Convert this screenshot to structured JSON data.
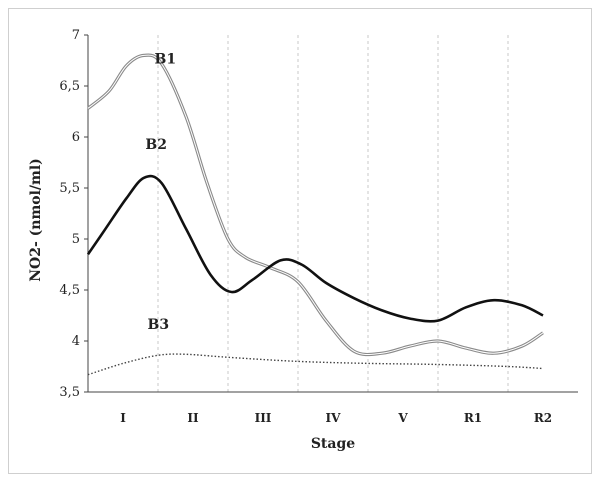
{
  "chart_data": {
    "type": "line",
    "xlabel": "Stage",
    "ylabel": "NO2- (nmol/ml)",
    "categories": [
      "I",
      "II",
      "III",
      "IV",
      "V",
      "R1",
      "R2"
    ],
    "ylim": [
      3.5,
      7
    ],
    "yticks": [
      "3,5",
      "4",
      "4,5",
      "5",
      "5,5",
      "6",
      "6,5",
      "7"
    ],
    "grid": "vertical dashed",
    "legend": "inline labels",
    "series": [
      {
        "name": "B1",
        "color": "#8a8a8a",
        "style": "double",
        "x": [
          0,
          0.3,
          0.55,
          0.8,
          1.05,
          1.4,
          1.7,
          2.0,
          2.25,
          2.6,
          3.0,
          3.4,
          3.8,
          4.2,
          4.6,
          5.0,
          5.4,
          5.8,
          6.2,
          6.5
        ],
        "y": [
          6.28,
          6.45,
          6.7,
          6.8,
          6.72,
          6.2,
          5.55,
          5.0,
          4.82,
          4.72,
          4.58,
          4.2,
          3.9,
          3.88,
          3.95,
          4.0,
          3.93,
          3.88,
          3.95,
          4.08
        ]
      },
      {
        "name": "B2",
        "color": "#111111",
        "style": "solid",
        "x": [
          0,
          0.25,
          0.55,
          0.8,
          1.05,
          1.4,
          1.75,
          2.05,
          2.35,
          2.75,
          3.05,
          3.4,
          3.8,
          4.2,
          4.6,
          5.0,
          5.4,
          5.8,
          6.2,
          6.5
        ],
        "y": [
          4.85,
          5.1,
          5.4,
          5.6,
          5.55,
          5.1,
          4.65,
          4.48,
          4.6,
          4.79,
          4.75,
          4.57,
          4.42,
          4.3,
          4.22,
          4.2,
          4.33,
          4.4,
          4.35,
          4.25
        ]
      },
      {
        "name": "B3",
        "color": "#444444",
        "style": "dotted",
        "x": [
          0,
          0.5,
          1.0,
          1.4,
          2.0,
          3.0,
          4.0,
          5.0,
          6.0,
          6.5
        ],
        "y": [
          3.67,
          3.78,
          3.86,
          3.87,
          3.84,
          3.8,
          3.78,
          3.77,
          3.75,
          3.73
        ]
      }
    ]
  }
}
